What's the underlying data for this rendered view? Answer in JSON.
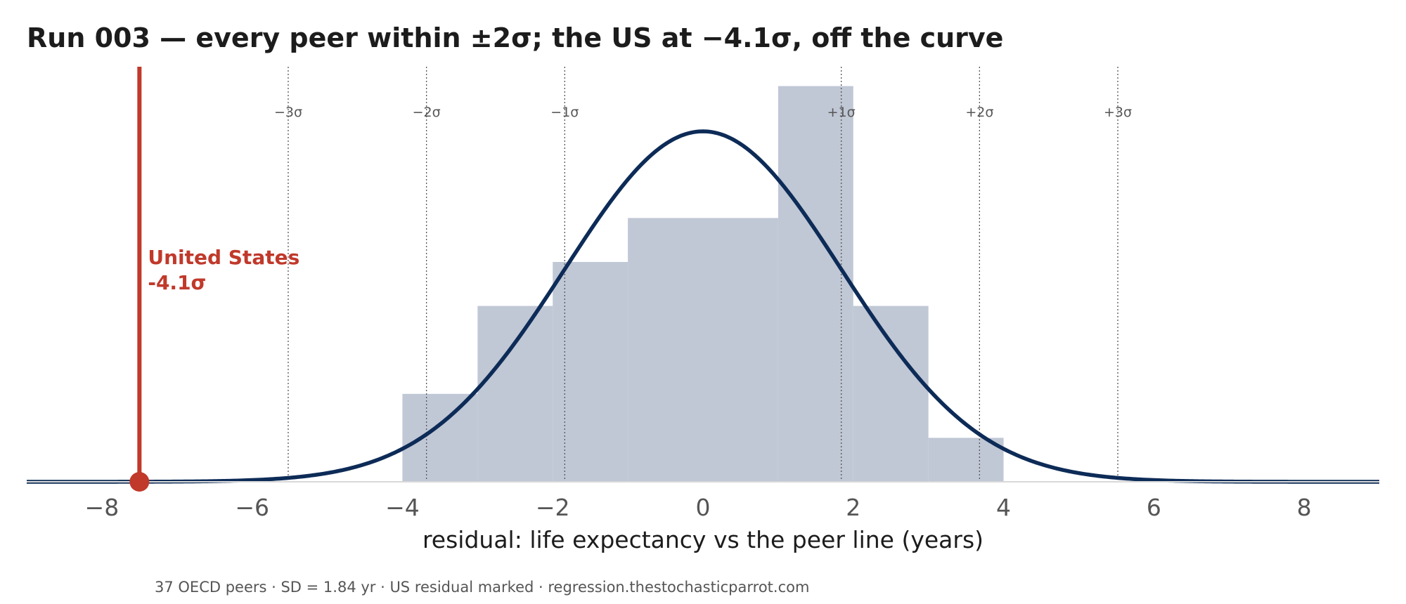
{
  "chart_data": {
    "type": "bar",
    "title": "Run 003 — every peer within ±2σ; the US at −4.1σ, off the curve",
    "xlabel": "residual: life expectancy vs the peer line (years)",
    "caption": "37 OECD peers · SD = 1.84 yr · US residual marked · regression.thestochasticparrot.com",
    "xlim": [
      -9,
      9
    ],
    "x_ticks": [
      -8,
      -6,
      -4,
      -2,
      0,
      2,
      4,
      6,
      8
    ],
    "x_tick_labels": [
      "−8",
      "−6",
      "−4",
      "−2",
      "0",
      "2",
      "4",
      "6",
      "8"
    ],
    "histogram": {
      "bin_edges": [
        -4,
        -3,
        -2,
        -1,
        0,
        1,
        2,
        3,
        4
      ],
      "counts": [
        2,
        4,
        5,
        6,
        6,
        9,
        4,
        1
      ]
    },
    "normal_curve": {
      "mean": 0,
      "sd": 1.84
    },
    "sigma_lines": [
      {
        "label": "−3σ",
        "x": -5.52
      },
      {
        "label": "−2σ",
        "x": -3.68
      },
      {
        "label": "−1σ",
        "x": -1.84
      },
      {
        "label": "+1σ",
        "x": 1.84
      },
      {
        "label": "+2σ",
        "x": 3.68
      },
      {
        "label": "+3σ",
        "x": 5.52
      }
    ],
    "highlight": {
      "name": "United States",
      "value_label": "-4.1σ",
      "x": -7.5
    },
    "grid": false,
    "colors": {
      "bars": "#c0c7d5",
      "curve": "#0d2b57",
      "highlight": "#c0392b",
      "axis": "#0d2b57",
      "sigma_lines": "#555555"
    }
  }
}
